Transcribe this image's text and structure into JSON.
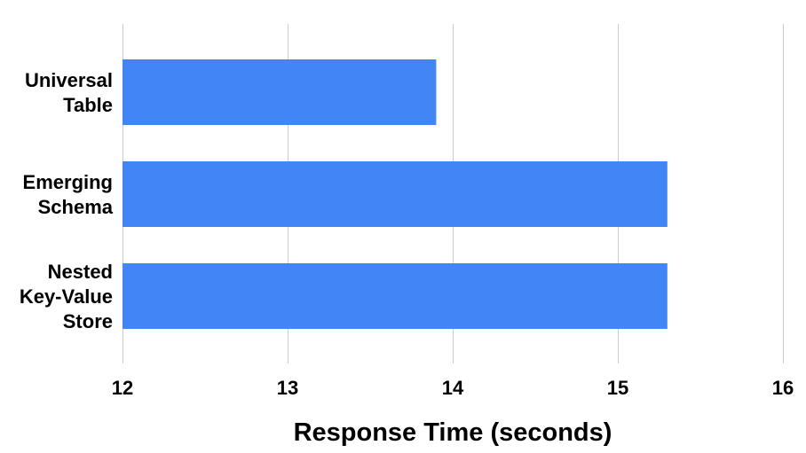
{
  "chart_data": {
    "type": "bar",
    "orientation": "horizontal",
    "categories": [
      [
        "Universal",
        "Table"
      ],
      [
        "Emerging",
        "Schema"
      ],
      [
        "Nested",
        "Key-Value",
        "Store"
      ]
    ],
    "values": [
      13.9,
      15.3,
      15.3
    ],
    "xlabel": "Response Time (seconds)",
    "ylabel": "",
    "xlim": [
      12,
      16
    ],
    "xticks": [
      "12",
      "13",
      "14",
      "15",
      "16"
    ],
    "grid": "vertical",
    "legend": "none",
    "bar_color": "#4285f4"
  }
}
